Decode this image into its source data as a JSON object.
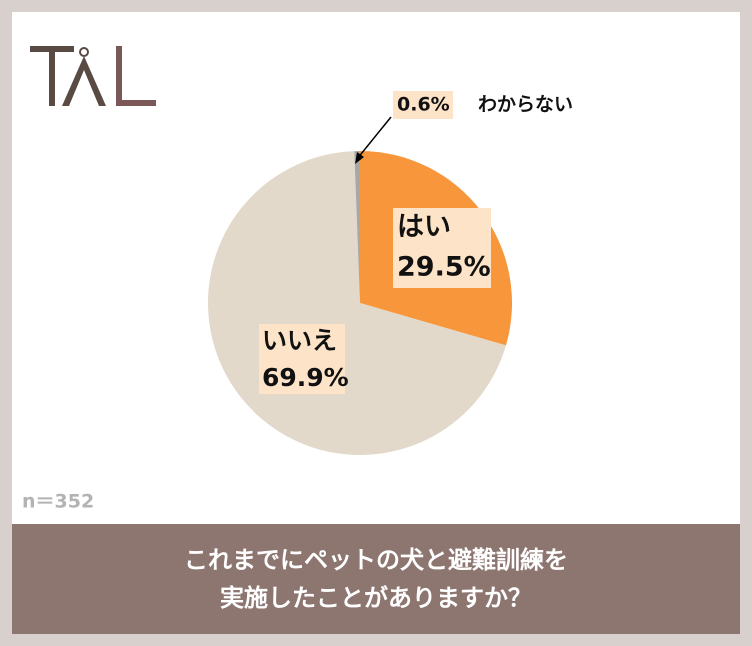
{
  "chart_data": {
    "type": "pie",
    "title": [
      "これまでにペットの犬と避難訓練を",
      "実施したことがありますか？"
    ],
    "note": "n＝352",
    "categories": [
      "はい",
      "いいえ",
      "わからない"
    ],
    "values": [
      29.5,
      69.9,
      0.6
    ],
    "value_labels": [
      "29.5%",
      "69.9%",
      "0.6%"
    ],
    "colors": [
      "#f7963a",
      "#e2d9ca",
      "#a8a8a8"
    ]
  }
}
